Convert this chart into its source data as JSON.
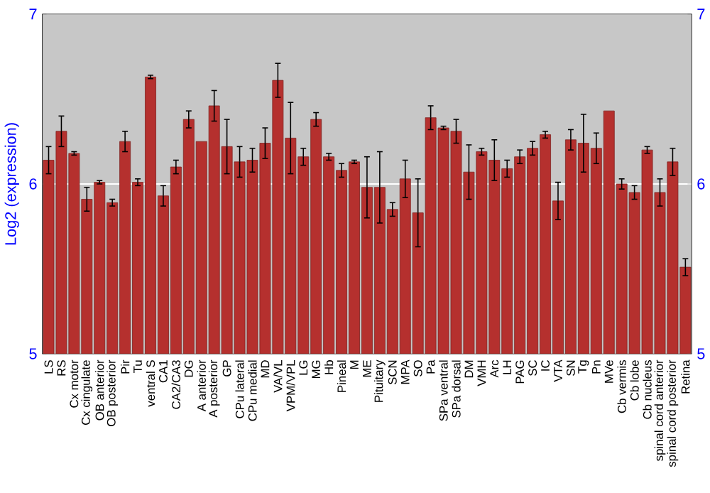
{
  "chart_data": {
    "type": "bar",
    "ylabel": "Log2 (expression)",
    "categories": [
      "LS",
      "RS",
      "Cx motor",
      "Cx cingulate",
      "OB anterior",
      "OB posterior",
      "Pir",
      "Tu",
      "ventral S",
      "CA1",
      "CA2/CA3",
      "DG",
      "A anterior",
      "A posterior",
      "GP",
      "CPu lateral",
      "CPu medial",
      "MD",
      "VA/VL",
      "VPM/VPL",
      "LG",
      "MG",
      "Hb",
      "Pineal",
      "M",
      "ME",
      "Pituitary",
      "SCN",
      "MPA",
      "SO",
      "Pa",
      "SPa ventral",
      "SPa dorsal",
      "DM",
      "VMH",
      "Arc",
      "LH",
      "PAG",
      "SC",
      "IC",
      "VTA",
      "SN",
      "Tg",
      "Pn",
      "MVe",
      "Cb vermis",
      "Cb lobe",
      "Cb nucleus",
      "spinal cord anterior",
      "spinal cord posterior",
      "Retina"
    ],
    "values": [
      6.14,
      6.31,
      6.18,
      5.91,
      6.01,
      5.89,
      6.25,
      6.01,
      6.63,
      5.93,
      6.1,
      6.38,
      6.25,
      6.46,
      6.22,
      6.13,
      6.14,
      6.24,
      6.61,
      6.27,
      6.16,
      6.38,
      6.16,
      6.08,
      6.13,
      5.98,
      5.98,
      5.85,
      6.03,
      5.83,
      6.39,
      6.33,
      6.31,
      6.07,
      6.19,
      6.14,
      6.09,
      6.16,
      6.21,
      6.29,
      5.9,
      6.26,
      6.24,
      6.21,
      6.43,
      6.0,
      5.95,
      6.2,
      5.95,
      6.13,
      5.51
    ],
    "errors": [
      0.08,
      0.09,
      0.01,
      0.07,
      0.01,
      0.02,
      0.06,
      0.02,
      0.01,
      0.06,
      0.04,
      0.05,
      null,
      0.09,
      0.16,
      0.09,
      0.07,
      0.09,
      0.1,
      0.21,
      0.05,
      0.04,
      0.02,
      0.04,
      0.01,
      0.18,
      0.21,
      0.04,
      0.11,
      0.2,
      0.07,
      0.01,
      0.07,
      0.16,
      0.02,
      0.12,
      0.05,
      0.04,
      0.04,
      0.02,
      0.11,
      0.06,
      0.17,
      0.09,
      null,
      0.03,
      0.04,
      0.02,
      0.08,
      0.08,
      0.05
    ],
    "color": "#b5302e",
    "ylim": [
      5,
      7
    ],
    "yticks": [
      5,
      6,
      7
    ],
    "y2lim": [
      5,
      7
    ],
    "y2ticks": [
      5,
      6,
      7
    ],
    "grid": "y"
  }
}
